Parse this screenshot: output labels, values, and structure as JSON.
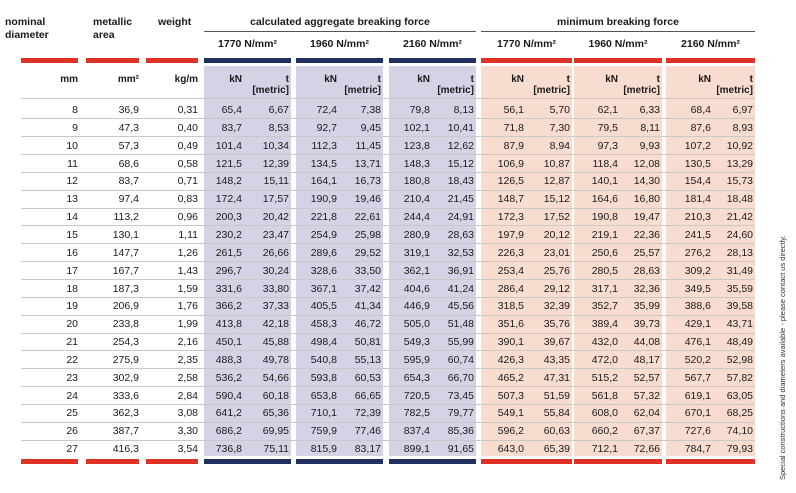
{
  "headers": {
    "nominal_diameter": "nominal diameter",
    "metallic_area": "metallic area",
    "weight": "weight",
    "calc_group": "calculated aggregate breaking force",
    "min_group": "minimum breaking force",
    "grades": [
      "1770 N/mm²",
      "1960 N/mm²",
      "2160 N/mm²"
    ],
    "unit_mm": "mm",
    "unit_area": "mm²",
    "unit_weight": "kg/m",
    "unit_kn": "kN",
    "unit_t": "t",
    "unit_t_sub": "[metric]"
  },
  "side_note": "Special constructions and diameters available - please contact us directly.",
  "colors": {
    "red": "#df3126",
    "navy": "#1f2f5e",
    "blue_bg": "#d4d3e6",
    "pink_bg": "#f9dcd0"
  },
  "rows": [
    [
      "8",
      "36,9",
      "0,31",
      "65,4",
      "6,67",
      "72,4",
      "7,38",
      "79,8",
      "8,13",
      "56,1",
      "5,70",
      "62,1",
      "6,33",
      "68,4",
      "6,97"
    ],
    [
      "9",
      "47,3",
      "0,40",
      "83,7",
      "8,53",
      "92,7",
      "9,45",
      "102,1",
      "10,41",
      "71,8",
      "7,30",
      "79,5",
      "8,11",
      "87,6",
      "8,93"
    ],
    [
      "10",
      "57,3",
      "0,49",
      "101,4",
      "10,34",
      "112,3",
      "11,45",
      "123,8",
      "12,62",
      "87,9",
      "8,94",
      "97,3",
      "9,93",
      "107,2",
      "10,92"
    ],
    [
      "11",
      "68,6",
      "0,58",
      "121,5",
      "12,39",
      "134,5",
      "13,71",
      "148,3",
      "15,12",
      "106,9",
      "10,87",
      "118,4",
      "12,08",
      "130,5",
      "13,29"
    ],
    [
      "12",
      "83,7",
      "0,71",
      "148,2",
      "15,11",
      "164,1",
      "16,73",
      "180,8",
      "18,43",
      "126,5",
      "12,87",
      "140,1",
      "14,30",
      "154,4",
      "15,73"
    ],
    [
      "13",
      "97,4",
      "0,83",
      "172,4",
      "17,57",
      "190,9",
      "19,46",
      "210,4",
      "21,45",
      "148,7",
      "15,12",
      "164,6",
      "16,80",
      "181,4",
      "18,48"
    ],
    [
      "14",
      "113,2",
      "0,96",
      "200,3",
      "20,42",
      "221,8",
      "22,61",
      "244,4",
      "24,91",
      "172,3",
      "17,52",
      "190,8",
      "19,47",
      "210,3",
      "21,42"
    ],
    [
      "15",
      "130,1",
      "1,11",
      "230,2",
      "23,47",
      "254,9",
      "25,98",
      "280,9",
      "28,63",
      "197,9",
      "20,12",
      "219,1",
      "22,36",
      "241,5",
      "24,60"
    ],
    [
      "16",
      "147,7",
      "1,26",
      "261,5",
      "26,66",
      "289,6",
      "29,52",
      "319,1",
      "32,53",
      "226,3",
      "23,01",
      "250,6",
      "25,57",
      "276,2",
      "28,13"
    ],
    [
      "17",
      "167,7",
      "1,43",
      "296,7",
      "30,24",
      "328,6",
      "33,50",
      "362,1",
      "36,91",
      "253,4",
      "25,76",
      "280,5",
      "28,63",
      "309,2",
      "31,49"
    ],
    [
      "18",
      "187,3",
      "1,59",
      "331,6",
      "33,80",
      "367,1",
      "37,42",
      "404,6",
      "41,24",
      "286,4",
      "29,12",
      "317,1",
      "32,36",
      "349,5",
      "35,59"
    ],
    [
      "19",
      "206,9",
      "1,76",
      "366,2",
      "37,33",
      "405,5",
      "41,34",
      "446,9",
      "45,56",
      "318,5",
      "32,39",
      "352,7",
      "35,99",
      "388,6",
      "39,58"
    ],
    [
      "20",
      "233,8",
      "1,99",
      "413,8",
      "42,18",
      "458,3",
      "46,72",
      "505,0",
      "51,48",
      "351,6",
      "35,76",
      "389,4",
      "39,73",
      "429,1",
      "43,71"
    ],
    [
      "21",
      "254,3",
      "2,16",
      "450,1",
      "45,88",
      "498,4",
      "50,81",
      "549,3",
      "55,99",
      "390,1",
      "39,67",
      "432,0",
      "44,08",
      "476,1",
      "48,49"
    ],
    [
      "22",
      "275,9",
      "2,35",
      "488,3",
      "49,78",
      "540,8",
      "55,13",
      "595,9",
      "60,74",
      "426,3",
      "43,35",
      "472,0",
      "48,17",
      "520,2",
      "52,98"
    ],
    [
      "23",
      "302,9",
      "2,58",
      "536,2",
      "54,66",
      "593,8",
      "60,53",
      "654,3",
      "66,70",
      "465,2",
      "47,31",
      "515,2",
      "52,57",
      "567,7",
      "57,82"
    ],
    [
      "24",
      "333,6",
      "2,84",
      "590,4",
      "60,18",
      "653,8",
      "66,65",
      "720,5",
      "73,45",
      "507,3",
      "51,59",
      "561,8",
      "57,32",
      "619,1",
      "63,05"
    ],
    [
      "25",
      "362,3",
      "3,08",
      "641,2",
      "65,36",
      "710,1",
      "72,39",
      "782,5",
      "79,77",
      "549,1",
      "55,84",
      "608,0",
      "62,04",
      "670,1",
      "68,25"
    ],
    [
      "26",
      "387,7",
      "3,30",
      "686,2",
      "69,95",
      "759,9",
      "77,46",
      "837,4",
      "85,36",
      "596,2",
      "60,63",
      "660,2",
      "67,37",
      "727,6",
      "74,10"
    ],
    [
      "27",
      "416,3",
      "3,54",
      "736,8",
      "75,11",
      "815,9",
      "83,17",
      "899,1",
      "91,65",
      "643,0",
      "65,39",
      "712,1",
      "72,66",
      "784,7",
      "79,93"
    ]
  ]
}
